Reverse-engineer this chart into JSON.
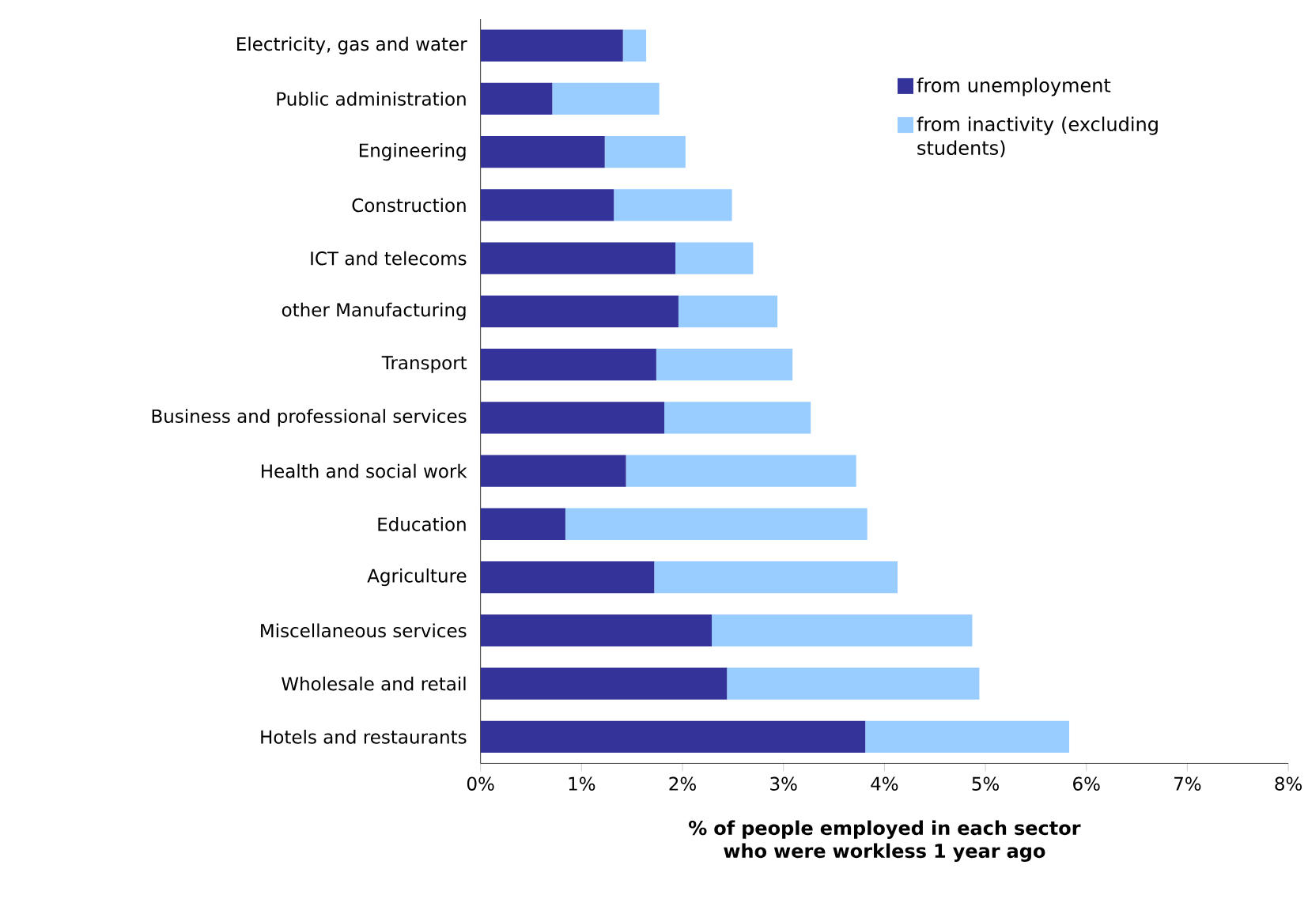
{
  "chart_data": {
    "type": "bar",
    "orientation": "horizontal",
    "stacked": true,
    "categories": [
      "Electricity, gas and water",
      "Public administration",
      "Engineering",
      "Construction",
      "ICT and telecoms",
      "other Manufacturing",
      "Transport",
      "Business and professional services",
      "Health and social work",
      "Education",
      "Agriculture",
      "Miscellaneous services",
      "Wholesale and retail",
      "Hotels and restaurants"
    ],
    "series": [
      {
        "name": "from unemployment",
        "color": "#333399",
        "values": [
          1.41,
          0.71,
          1.23,
          1.32,
          1.93,
          1.96,
          1.74,
          1.82,
          1.44,
          0.84,
          1.72,
          2.29,
          2.44,
          3.81
        ]
      },
      {
        "name": "from inactivity (excluding students)",
        "color": "#99ccff",
        "values": [
          0.23,
          1.06,
          0.8,
          1.17,
          0.77,
          0.98,
          1.35,
          1.45,
          2.28,
          2.99,
          2.41,
          2.58,
          2.5,
          2.02
        ]
      }
    ],
    "xlim": [
      0,
      8
    ],
    "xticks": [
      {
        "value": 0,
        "label": "0%"
      },
      {
        "value": 1,
        "label": "1%"
      },
      {
        "value": 2,
        "label": "2%"
      },
      {
        "value": 3,
        "label": "3%"
      },
      {
        "value": 4,
        "label": "4%"
      },
      {
        "value": 5,
        "label": "5%"
      },
      {
        "value": 6,
        "label": "6%"
      },
      {
        "value": 7,
        "label": "7%"
      },
      {
        "value": 8,
        "label": "8%"
      }
    ],
    "xlabel": "% of people employed in each sector who were workless 1 year ago",
    "legend": "top right"
  }
}
